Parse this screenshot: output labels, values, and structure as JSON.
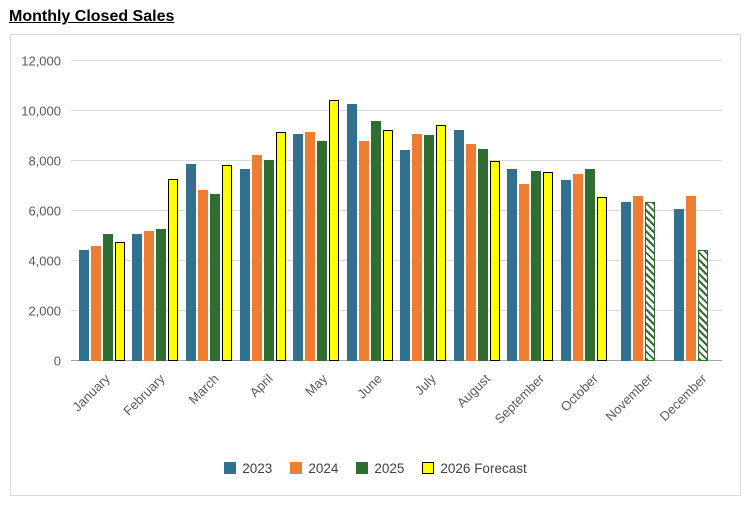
{
  "page": {
    "title": "Monthly Closed Sales"
  },
  "chart_data": {
    "type": "bar",
    "title": "Monthly Closed Sales",
    "categories": [
      "January",
      "February",
      "March",
      "April",
      "May",
      "June",
      "July",
      "August",
      "September",
      "October",
      "November",
      "December"
    ],
    "series": [
      {
        "name": "2023",
        "color": "#31708E",
        "values": [
          4450,
          5100,
          7900,
          7700,
          9100,
          10300,
          8450,
          9250,
          7700,
          7250,
          6350,
          6100
        ]
      },
      {
        "name": "2024",
        "color": "#ED7D31",
        "values": [
          4600,
          5200,
          6850,
          8250,
          9150,
          8800,
          9100,
          8700,
          7100,
          7500,
          6600,
          6600
        ]
      },
      {
        "name": "2025",
        "color": "#2F6D31",
        "values": [
          5100,
          5300,
          6700,
          8050,
          8800,
          9600,
          9050,
          8500,
          7600,
          7700,
          6350,
          4450
        ],
        "hatched_indices": [
          10,
          11
        ]
      },
      {
        "name": "2026 Forecast",
        "color": "#FFFF00",
        "border_color": "#000000",
        "values": [
          4750,
          7300,
          7850,
          9150,
          10450,
          9250,
          9450,
          8000,
          7550,
          6550,
          null,
          null
        ]
      }
    ],
    "ylim": [
      0,
      12000
    ],
    "ytick_interval": 2000,
    "ytick_labels": [
      "0",
      "2,000",
      "4,000",
      "6,000",
      "8,000",
      "10,000",
      "12,000"
    ],
    "grid": true,
    "legend_position": "bottom"
  }
}
